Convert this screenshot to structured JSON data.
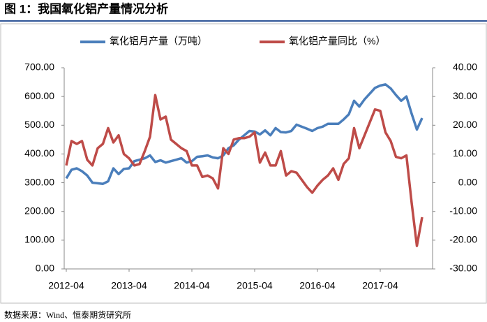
{
  "title": "图 1：我国氧化铝产量情况分析",
  "source": "数据来源：Wind、恒泰期货研究所",
  "chart_data": {
    "type": "line",
    "categories": [
      "2012-04",
      null,
      null,
      null,
      null,
      null,
      null,
      null,
      null,
      null,
      null,
      null,
      "2013-04",
      null,
      null,
      null,
      null,
      null,
      null,
      null,
      null,
      null,
      null,
      null,
      "2014-04",
      null,
      null,
      null,
      null,
      null,
      null,
      null,
      null,
      null,
      null,
      null,
      "2015-04",
      null,
      null,
      null,
      null,
      null,
      null,
      null,
      null,
      null,
      null,
      null,
      "2016-04",
      null,
      null,
      null,
      null,
      null,
      null,
      null,
      null,
      null,
      null,
      null,
      "2017-04",
      null,
      null,
      null,
      null,
      null,
      null,
      null,
      null
    ],
    "series": [
      {
        "name": "氧化铝月产量（万吨）",
        "color": "#4a7ebb",
        "axis": "y",
        "values": [
          315,
          345,
          350,
          340,
          325,
          300,
          298,
          296,
          305,
          350,
          330,
          348,
          350,
          375,
          380,
          385,
          395,
          372,
          378,
          370,
          375,
          380,
          385,
          370,
          375,
          390,
          392,
          395,
          388,
          385,
          395,
          420,
          430,
          450,
          465,
          480,
          478,
          468,
          482,
          465,
          490,
          476,
          475,
          480,
          502,
          495,
          488,
          480,
          490,
          495,
          505,
          505,
          505,
          520,
          538,
          585,
          565,
          590,
          610,
          630,
          638,
          642,
          628,
          605,
          585,
          600,
          540,
          485,
          525
        ]
      },
      {
        "name": "氧化铝产量同比（%）",
        "color": "#be4b48",
        "axis": "y2",
        "values": [
          6,
          14.5,
          13.5,
          14.5,
          8,
          6,
          12,
          13.5,
          19,
          14,
          16.5,
          10,
          8.5,
          6,
          6.5,
          11,
          16,
          30.5,
          22,
          23,
          15,
          13.5,
          12,
          11,
          6,
          6,
          2,
          2.5,
          1.5,
          -2,
          12,
          10,
          15,
          15.5,
          15.5,
          16,
          17.5,
          7,
          10.5,
          6,
          6,
          11,
          2.5,
          4,
          3.5,
          1,
          -1.5,
          -3.5,
          -1,
          1,
          2.5,
          5,
          1,
          6.5,
          8.5,
          19,
          12,
          16.5,
          21,
          25.5,
          25,
          17.5,
          14.5,
          9,
          8.5,
          9.5,
          -7,
          -22,
          -12
        ]
      }
    ],
    "ylim": [
      0,
      700
    ],
    "yticks": [
      {
        "value": 0,
        "label": "0.00"
      },
      {
        "value": 100,
        "label": "100.00"
      },
      {
        "value": 200,
        "label": "200.00"
      },
      {
        "value": 300,
        "label": "300.00"
      },
      {
        "value": 400,
        "label": "400.00"
      },
      {
        "value": 500,
        "label": "500.00"
      },
      {
        "value": 600,
        "label": "600.00"
      },
      {
        "value": 700,
        "label": "700.00"
      }
    ],
    "y2lim": [
      -30,
      40
    ],
    "y2ticks": [
      {
        "value": -30,
        "label": "-30.00"
      },
      {
        "value": -20,
        "label": "-20.00"
      },
      {
        "value": -10,
        "label": "-10.00"
      },
      {
        "value": 0,
        "label": "0.00"
      },
      {
        "value": 10,
        "label": "10.00"
      },
      {
        "value": 20,
        "label": "20.00"
      },
      {
        "value": 30,
        "label": "30.00"
      },
      {
        "value": 40,
        "label": "40.00"
      }
    ],
    "legend": "top"
  }
}
